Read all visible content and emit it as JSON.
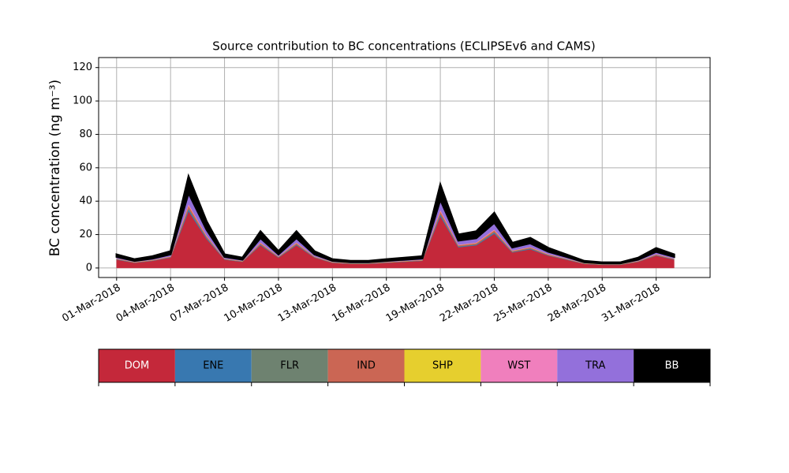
{
  "chart_data": {
    "type": "stacked-area",
    "title": "Source contribution to BC concentrations (ECLIPSEv6 and CAMS)",
    "y_label": "BC concentration (ng m⁻³)",
    "x": [
      "2018-03-01",
      "2018-03-02",
      "2018-03-03",
      "2018-03-04",
      "2018-03-05",
      "2018-03-06",
      "2018-03-07",
      "2018-03-08",
      "2018-03-09",
      "2018-03-10",
      "2018-03-11",
      "2018-03-12",
      "2018-03-13",
      "2018-03-14",
      "2018-03-15",
      "2018-03-16",
      "2018-03-17",
      "2018-03-18",
      "2018-03-19",
      "2018-03-20",
      "2018-03-21",
      "2018-03-22",
      "2018-03-23",
      "2018-03-24",
      "2018-03-25",
      "2018-03-26",
      "2018-03-27",
      "2018-03-28",
      "2018-03-29",
      "2018-03-30",
      "2018-03-31",
      "2018-04-01"
    ],
    "xlim": [
      "2018-02-28",
      "2018-04-03"
    ],
    "xticks": [
      {
        "value": "2018-03-01",
        "label": "01-Mar-2018"
      },
      {
        "value": "2018-03-04",
        "label": "04-Mar-2018"
      },
      {
        "value": "2018-03-07",
        "label": "07-Mar-2018"
      },
      {
        "value": "2018-03-10",
        "label": "10-Mar-2018"
      },
      {
        "value": "2018-03-13",
        "label": "13-Mar-2018"
      },
      {
        "value": "2018-03-16",
        "label": "16-Mar-2018"
      },
      {
        "value": "2018-03-19",
        "label": "19-Mar-2018"
      },
      {
        "value": "2018-03-22",
        "label": "22-Mar-2018"
      },
      {
        "value": "2018-03-25",
        "label": "25-Mar-2018"
      },
      {
        "value": "2018-03-28",
        "label": "28-Mar-2018"
      },
      {
        "value": "2018-03-31",
        "label": "31-Mar-2018"
      }
    ],
    "ylim": [
      -5.7,
      126
    ],
    "yticks": [
      0,
      20,
      40,
      60,
      80,
      100,
      120
    ],
    "grid": true,
    "series": [
      {
        "name": "DOM",
        "color": "#c4283a",
        "values": [
          5,
          3.1,
          4.3,
          6.2,
          34,
          17.4,
          5,
          3.7,
          13.6,
          6.2,
          13.6,
          6.2,
          3.1,
          2.5,
          2.5,
          3.1,
          3.7,
          4.3,
          31,
          12.4,
          13.6,
          20.5,
          9.3,
          11.2,
          7.4,
          5,
          2.5,
          1.9,
          1.9,
          3.7,
          7.4,
          5
        ]
      },
      {
        "name": "ENE",
        "color": "#3878b0",
        "values": [
          0.2,
          0.1,
          0.1,
          0.2,
          1.1,
          0.6,
          0.2,
          0.1,
          0.4,
          0.2,
          0.4,
          0.2,
          0.1,
          0.1,
          0.1,
          0.1,
          0.1,
          0.1,
          1,
          0.4,
          0.4,
          0.7,
          0.3,
          0.4,
          0.2,
          0.2,
          0.1,
          0.1,
          0.1,
          0.1,
          0.2,
          0.2
        ]
      },
      {
        "name": "FLR",
        "color": "#6e8270",
        "values": [
          0.1,
          0.1,
          0.1,
          0.1,
          0.6,
          0.3,
          0.1,
          0.1,
          0.2,
          0.1,
          0.2,
          0.1,
          0.1,
          0.1,
          0.1,
          0.1,
          0.1,
          0.1,
          0.5,
          0.2,
          0.2,
          0.3,
          0.1,
          0.2,
          0.1,
          0.1,
          0.1,
          0.1,
          0.1,
          0.1,
          0.1,
          0.1
        ]
      },
      {
        "name": "IND",
        "color": "#cb6654",
        "values": [
          0.2,
          0.2,
          0.2,
          0.3,
          1.7,
          0.8,
          0.2,
          0.2,
          0.7,
          0.3,
          0.7,
          0.3,
          0.2,
          0.1,
          0.1,
          0.2,
          0.2,
          0.2,
          1.5,
          0.6,
          0.7,
          1,
          0.5,
          0.5,
          0.4,
          0.2,
          0.1,
          0.1,
          0.1,
          0.2,
          0.4,
          0.2
        ]
      },
      {
        "name": "SHP",
        "color": "#e6cf2e",
        "values": [
          0.1,
          0.1,
          0.1,
          0.1,
          0.1,
          0.1,
          0.1,
          0.1,
          0.1,
          0.1,
          0.1,
          0.1,
          0.1,
          0.1,
          0.1,
          0.1,
          0.1,
          0.1,
          0.1,
          0.1,
          0.1,
          0.1,
          0.1,
          0.1,
          0.1,
          0.1,
          0.1,
          0.1,
          0.1,
          0.1,
          0.1,
          0.1
        ]
      },
      {
        "name": "WST",
        "color": "#f07fbd",
        "values": [
          0.1,
          0.1,
          0.1,
          0.1,
          0.8,
          0.4,
          0.1,
          0.1,
          0.3,
          0.1,
          0.3,
          0.1,
          0.1,
          0.1,
          0.1,
          0.1,
          0.1,
          0.1,
          0.8,
          0.3,
          0.3,
          0.5,
          0.2,
          0.2,
          0.2,
          0.1,
          0.1,
          0.1,
          0.1,
          0.1,
          0.1,
          0.1
        ]
      },
      {
        "name": "TRA",
        "color": "#9370db",
        "values": [
          1,
          0.6,
          0.8,
          1.2,
          6.6,
          3.4,
          1,
          0.7,
          2.6,
          1.2,
          2.6,
          1.2,
          0.6,
          0.5,
          0.5,
          0.6,
          0.7,
          0.8,
          6,
          2.4,
          2.6,
          4,
          1.8,
          2.2,
          1.4,
          1,
          0.5,
          0.4,
          0.4,
          0.7,
          1.4,
          1
        ]
      },
      {
        "name": "BB",
        "color": "#000000",
        "values": [
          1.4,
          0.9,
          1.3,
          1.8,
          9.9,
          5,
          1.4,
          1.1,
          4,
          1.8,
          4,
          1.8,
          0.9,
          0.7,
          0.7,
          0.9,
          1.1,
          1.3,
          9,
          3.6,
          4,
          5.9,
          2.7,
          3.2,
          2.2,
          1.4,
          0.7,
          0.5,
          0.5,
          1.1,
          2.2,
          1.4
        ]
      }
    ]
  }
}
